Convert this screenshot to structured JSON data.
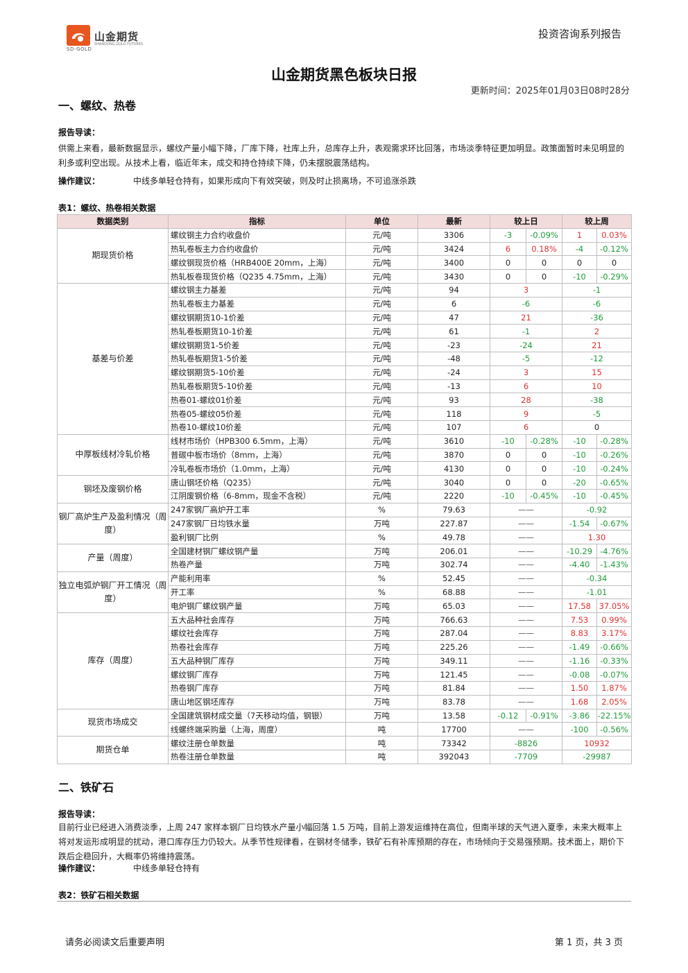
{
  "header": {
    "logo_cn": "山金期货",
    "logo_en_left": "SD-GOLD",
    "logo_en_right": "SHANDONG GOLD FUTURES",
    "series": "投资咨询系列报告",
    "title": "山金期货黑色板块日报",
    "update_time": "更新时间：2025年01月03日08时28分"
  },
  "section1": {
    "heading": "一、螺纹、热卷",
    "guide_label": "报告导读：",
    "guide_text": "供需上来看，最新数据显示，螺纹产量小幅下降，厂库下降，社库上升，总库存上升，表观需求环比回落，市场淡季特征更加明显。政策面暂时未见明显的利多或利空出现。从技术上看，临近年末，成交和持仓持续下降，仍未摆脱震荡结构。",
    "advice_label": "操作建议：",
    "advice_text": "中线多单轻仓持有，如果形成向下有效突破，则及时止损离场，不可追涨杀跌",
    "table_title": "表1：螺纹、热卷相关数据",
    "table_headers": {
      "category": "数据类别",
      "indicator": "指标",
      "unit": "单位",
      "latest": "最新",
      "vs_prev_day": "较上日",
      "vs_prev_week": "较上周"
    },
    "groups": [
      {
        "category": "期现货价格",
        "rows": [
          {
            "indicator": "螺纹钢主力合约收盘价",
            "unit": "元/吨",
            "latest": "3306",
            "d_abs": "-3",
            "d_pct": "-0.09%",
            "w_abs": "1",
            "w_pct": "0.03%"
          },
          {
            "indicator": "热轧卷板主力合约收盘价",
            "unit": "元/吨",
            "latest": "3424",
            "d_abs": "6",
            "d_pct": "0.18%",
            "w_abs": "-4",
            "w_pct": "-0.12%"
          },
          {
            "indicator": "螺纹钢现货价格（HRB400E 20mm，上海）",
            "unit": "元/吨",
            "latest": "3400",
            "d_abs": "0",
            "d_pct": "0",
            "w_abs": "0",
            "w_pct": "0"
          },
          {
            "indicator": "热轧板卷现货价格（Q235 4.75mm，上海）",
            "unit": "元/吨",
            "latest": "3430",
            "d_abs": "0",
            "d_pct": "0",
            "w_abs": "-10",
            "w_pct": "-0.29%"
          }
        ]
      },
      {
        "category": "基差与价差",
        "rows": [
          {
            "indicator": "螺纹钢主力基差",
            "unit": "元/吨",
            "latest": "94",
            "d": "3",
            "w": "-1"
          },
          {
            "indicator": "热轧卷板主力基差",
            "unit": "元/吨",
            "latest": "6",
            "d": "-6",
            "w": "-6"
          },
          {
            "indicator": "螺纹钢期货10-1价差",
            "unit": "元/吨",
            "latest": "47",
            "d": "21",
            "w": "-36"
          },
          {
            "indicator": "热轧卷板期货10-1价差",
            "unit": "元/吨",
            "latest": "61",
            "d": "-1",
            "w": "2"
          },
          {
            "indicator": "螺纹钢期货1-5价差",
            "unit": "元/吨",
            "latest": "-23",
            "d": "-24",
            "w": "21"
          },
          {
            "indicator": "热轧卷板期货1-5价差",
            "unit": "元/吨",
            "latest": "-48",
            "d": "-5",
            "w": "-12"
          },
          {
            "indicator": "螺纹钢期货5-10价差",
            "unit": "元/吨",
            "latest": "-24",
            "d": "3",
            "w": "15"
          },
          {
            "indicator": "热轧卷板期货5-10价差",
            "unit": "元/吨",
            "latest": "-13",
            "d": "6",
            "w": "10"
          },
          {
            "indicator": "热卷01-螺纹01价差",
            "unit": "元/吨",
            "latest": "93",
            "d": "28",
            "w": "-38"
          },
          {
            "indicator": "热卷05-螺纹05价差",
            "unit": "元/吨",
            "latest": "118",
            "d": "9",
            "w": "-5"
          },
          {
            "indicator": "热卷10-螺纹10价差",
            "unit": "元/吨",
            "latest": "107",
            "d": "6",
            "w": "0"
          }
        ]
      },
      {
        "category": "中厚板线材冷轧价格",
        "rows": [
          {
            "indicator": "线材市场价（HPB300 6.5mm，上海）",
            "unit": "元/吨",
            "latest": "3610",
            "d_abs": "-10",
            "d_pct": "-0.28%",
            "w_abs": "-10",
            "w_pct": "-0.28%"
          },
          {
            "indicator": "普碳中板市场价（8mm，上海）",
            "unit": "元/吨",
            "latest": "3870",
            "d_abs": "0",
            "d_pct": "0",
            "w_abs": "-10",
            "w_pct": "-0.26%"
          },
          {
            "indicator": "冷轧卷板市场价（1.0mm，上海）",
            "unit": "元/吨",
            "latest": "4130",
            "d_abs": "0",
            "d_pct": "0",
            "w_abs": "-10",
            "w_pct": "-0.24%"
          }
        ]
      },
      {
        "category": "钢坯及废钢价格",
        "rows": [
          {
            "indicator": "唐山钢坯价格（Q235）",
            "unit": "元/吨",
            "latest": "3040",
            "d_abs": "0",
            "d_pct": "0",
            "w_abs": "-20",
            "w_pct": "-0.65%"
          },
          {
            "indicator": "江阴废钢价格（6-8mm，现金不含税）",
            "unit": "元/吨",
            "latest": "2220",
            "d_abs": "-10",
            "d_pct": "-0.45%",
            "w_abs": "-10",
            "w_pct": "-0.45%"
          }
        ]
      },
      {
        "category": "钢厂高炉生产及盈利情况（周度）",
        "rows": [
          {
            "indicator": "247家钢厂高炉开工率",
            "unit": "%",
            "latest": "79.63",
            "d": "——",
            "w": "-0.92"
          },
          {
            "indicator": "247家钢厂日均铁水量",
            "unit": "万吨",
            "latest": "227.87",
            "d": "——",
            "w_abs": "-1.54",
            "w_pct": "-0.67%"
          },
          {
            "indicator": "盈利钢厂比例",
            "unit": "%",
            "latest": "49.78",
            "d": "——",
            "w": "1.30"
          }
        ]
      },
      {
        "category": "产量（周度）",
        "rows": [
          {
            "indicator": "全国建材钢厂螺纹钢产量",
            "unit": "万吨",
            "latest": "206.01",
            "d": "——",
            "w_abs": "-10.29",
            "w_pct": "-4.76%"
          },
          {
            "indicator": "热卷产量",
            "unit": "万吨",
            "latest": "302.74",
            "d": "——",
            "w_abs": "-4.40",
            "w_pct": "-1.43%"
          }
        ]
      },
      {
        "category": "独立电弧炉钢厂开工情况（周度）",
        "rows": [
          {
            "indicator": "产能利用率",
            "unit": "%",
            "latest": "52.45",
            "d": "——",
            "w": "-0.34"
          },
          {
            "indicator": "开工率",
            "unit": "%",
            "latest": "68.88",
            "d": "——",
            "w": "-1.01"
          },
          {
            "indicator": "电炉钢厂螺纹钢产量",
            "unit": "万吨",
            "latest": "65.03",
            "d": "——",
            "w_abs": "17.58",
            "w_pct": "37.05%"
          }
        ]
      },
      {
        "category": "库存（周度）",
        "rows": [
          {
            "indicator": "五大品种社会库存",
            "unit": "万吨",
            "latest": "766.63",
            "d": "——",
            "w_abs": "7.53",
            "w_pct": "0.99%"
          },
          {
            "indicator": "螺纹社会库存",
            "unit": "万吨",
            "latest": "287.04",
            "d": "——",
            "w_abs": "8.83",
            "w_pct": "3.17%"
          },
          {
            "indicator": "热卷社会库存",
            "unit": "万吨",
            "latest": "225.26",
            "d": "——",
            "w_abs": "-1.49",
            "w_pct": "-0.66%"
          },
          {
            "indicator": "五大品种钢厂库存",
            "unit": "万吨",
            "latest": "349.11",
            "d": "——",
            "w_abs": "-1.16",
            "w_pct": "-0.33%"
          },
          {
            "indicator": "螺纹钢厂库存",
            "unit": "万吨",
            "latest": "121.45",
            "d": "——",
            "w_abs": "-0.08",
            "w_pct": "-0.07%"
          },
          {
            "indicator": "热卷钢厂库存",
            "unit": "万吨",
            "latest": "81.84",
            "d": "——",
            "w_abs": "1.50",
            "w_pct": "1.87%"
          },
          {
            "indicator": "唐山地区钢坯库存",
            "unit": "万吨",
            "latest": "83.78",
            "d": "——",
            "w_abs": "1.68",
            "w_pct": "2.05%"
          }
        ]
      },
      {
        "category": "现货市场成交",
        "rows": [
          {
            "indicator": "全国建筑钢材成交量（7天移动均值，钢银）",
            "unit": "万吨",
            "latest": "13.58",
            "d_abs": "-0.12",
            "d_pct": "-0.91%",
            "w_abs": "-3.86",
            "w_pct": "-22.15%"
          },
          {
            "indicator": "线螺终端采购量（上海，周度）",
            "unit": "吨",
            "latest": "17700",
            "d": "——",
            "w_abs": "-100",
            "w_pct": "-0.56%"
          }
        ]
      },
      {
        "category": "期货仓单",
        "rows": [
          {
            "indicator": "螺纹注册仓单数量",
            "unit": "吨",
            "latest": "73342",
            "d": "-8826",
            "w": "10932"
          },
          {
            "indicator": "热卷注册仓单数量",
            "unit": "吨",
            "latest": "392043",
            "d": "-7709",
            "w": "-29987"
          }
        ]
      }
    ]
  },
  "section2": {
    "heading": "二、铁矿石",
    "guide_label": "报告导读：",
    "guide_text": "目前行业已经进入消费淡季，上周 247 家样本钢厂日均铁水产量小幅回落 1.5 万吨，目前上游发运维持在高位，但南半球的天气进入夏季，未来大概率上将对发运形成明显的扰动，港口库存压力仍较大。从季节性规律看，在钢材冬储季，铁矿石有补库预期的存在，市场倾向于交易强预期。技术面上，期价下跌后企稳回升，大概率仍将维持震荡。",
    "advice_label": "操作建议：",
    "advice_text": "中线多单轻仓持有",
    "table_title": "表2：铁矿石相关数据"
  },
  "footer": {
    "disclaimer": "请务必阅读文后重要声明",
    "page": "第 1 页，共 3 页"
  },
  "colors": {
    "positive": "#e03030",
    "negative": "#1f9a3a",
    "header_bg": "#f2dcdb",
    "logo_orange": "#e8561f"
  }
}
